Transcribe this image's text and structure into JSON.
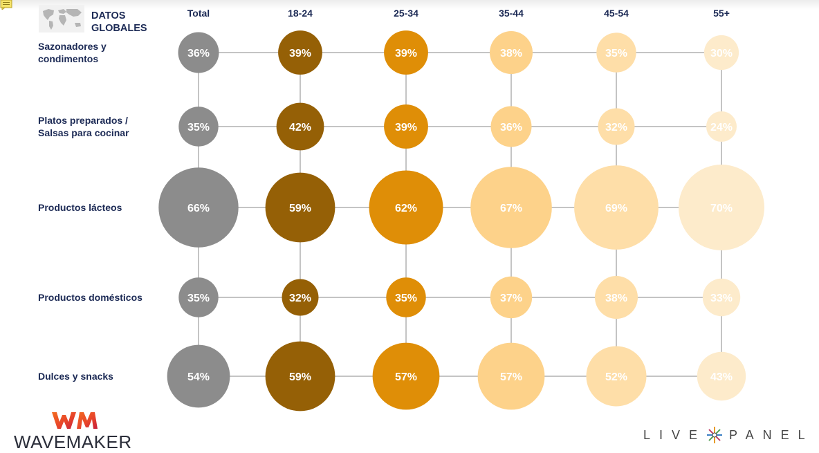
{
  "header": {
    "title_line1": "DATOS",
    "title_line2": "GLOBALES",
    "map_icon": "world-map-icon"
  },
  "branding": {
    "wavemaker_mark": "WM",
    "wavemaker_name": "WAVEMAKER",
    "livepanel_left": "LIVE",
    "livepanel_right": "PANEL"
  },
  "colors": {
    "total": "#8c8c8c",
    "18-24": "#956006",
    "25-34": "#df8e07",
    "35-44": "#fdd28a",
    "45-54": "#fedea8",
    "55+": "#fdebcb",
    "grid": "#c4c4c4",
    "label": "#1c2a55"
  },
  "chart_data": {
    "type": "bubble",
    "columns": [
      "Total",
      "18-24",
      "25-34",
      "35-44",
      "45-54",
      "55+"
    ],
    "rows": [
      {
        "label_lines": [
          "Sazonadores y",
          "condimentos"
        ],
        "values": [
          36,
          39,
          39,
          38,
          35,
          30
        ]
      },
      {
        "label_lines": [
          "Platos preparados /",
          "Salsas para cocinar"
        ],
        "values": [
          35,
          42,
          39,
          36,
          32,
          24
        ]
      },
      {
        "label_lines": [
          "Productos lácteos"
        ],
        "values": [
          66,
          59,
          62,
          67,
          69,
          70
        ]
      },
      {
        "label_lines": [
          "Productos domésticos"
        ],
        "values": [
          35,
          32,
          35,
          37,
          38,
          33
        ]
      },
      {
        "label_lines": [
          "Dulces y snacks"
        ],
        "values": [
          54,
          59,
          57,
          57,
          52,
          43
        ]
      }
    ],
    "value_format": "{v}%",
    "title": "",
    "xlabel": "",
    "ylabel": ""
  }
}
